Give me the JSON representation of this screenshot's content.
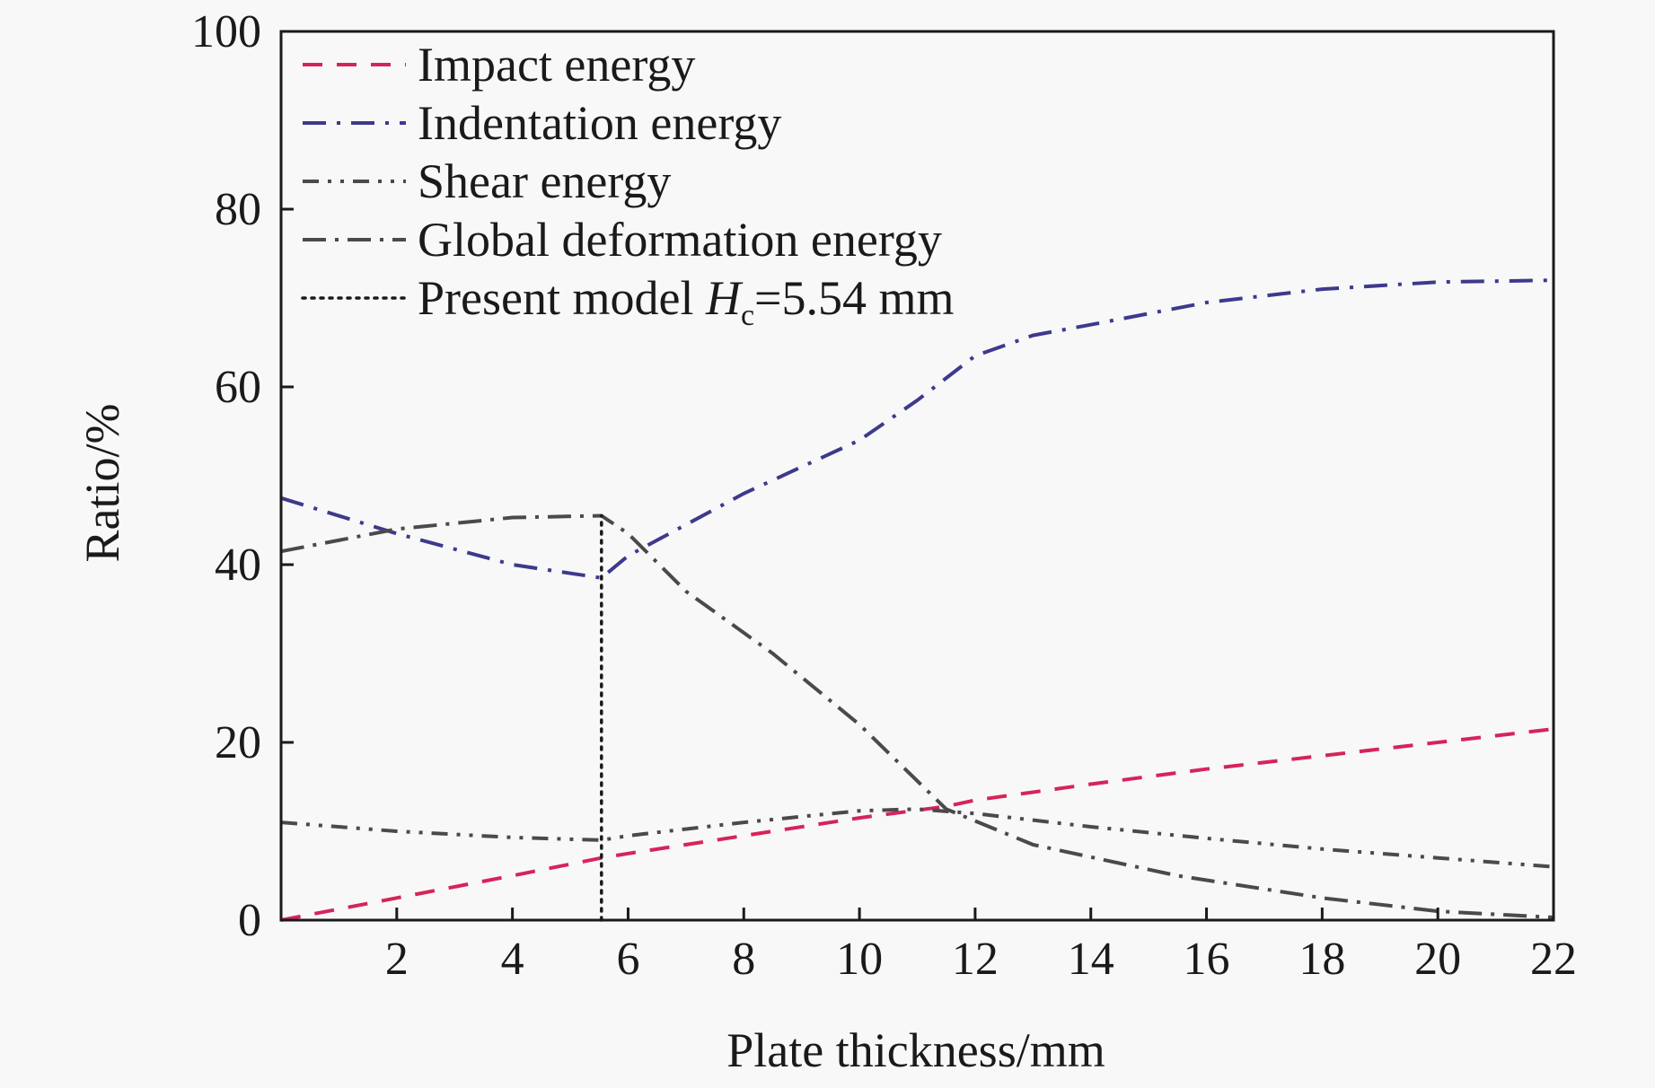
{
  "chart_data": {
    "type": "line",
    "title": "",
    "xlabel": "Plate thickness/mm",
    "ylabel": "Ratio/%",
    "xlim": [
      0,
      22
    ],
    "ylim": [
      0,
      100
    ],
    "xticks": [
      2,
      4,
      6,
      8,
      10,
      12,
      14,
      16,
      18,
      20,
      22
    ],
    "yticks": [
      0,
      20,
      40,
      60,
      80,
      100
    ],
    "grid": false,
    "legend_position": "top-left",
    "series": [
      {
        "name": "Impact energy",
        "color": "#d6245a",
        "style": "dashed",
        "x": [
          0,
          2,
          4,
          5.54,
          6,
          8,
          10,
          11.5,
          12,
          14,
          16,
          18,
          20,
          22
        ],
        "y": [
          0,
          2.5,
          5,
          7,
          7.5,
          9.5,
          11.5,
          12.8,
          13.5,
          15.3,
          17,
          18.5,
          20,
          21.5
        ]
      },
      {
        "name": "Indentation energy",
        "color": "#3d3a8c",
        "style": "dash-dot",
        "x": [
          0,
          2,
          4,
          5.54,
          6,
          8,
          10,
          11,
          12,
          13,
          14,
          16,
          18,
          20,
          22
        ],
        "y": [
          47.5,
          43.5,
          40,
          38.5,
          41,
          48,
          54,
          58.5,
          63.5,
          65.8,
          67,
          69.5,
          71,
          71.8,
          72
        ]
      },
      {
        "name": "Shear energy",
        "color": "#4a4a4a",
        "style": "dash-dot-dot",
        "x": [
          0,
          2,
          4,
          5.54,
          6,
          8,
          10,
          11,
          12,
          14,
          16,
          18,
          20,
          22
        ],
        "y": [
          11,
          10,
          9.3,
          9,
          9.5,
          11,
          12.3,
          12.5,
          12,
          10.5,
          9.2,
          8,
          7,
          6
        ]
      },
      {
        "name": "Global deformation energy",
        "color": "#4a4a4a",
        "style": "long-dash-dot",
        "x": [
          0,
          2,
          4,
          5.54,
          6,
          7,
          8.5,
          10,
          11.5,
          13,
          15.5,
          18,
          20,
          22
        ],
        "y": [
          41.5,
          44,
          45.3,
          45.5,
          43.5,
          37,
          30,
          22,
          12.5,
          8.5,
          5,
          2.5,
          1,
          0.3
        ]
      },
      {
        "name": "Present model",
        "label_prefix": "Present model ",
        "label_symbol": "H",
        "label_subscript": "c",
        "label_suffix": "=5.54 mm",
        "color": "#1a1a1a",
        "style": "dotted",
        "x": [
          5.54,
          5.54
        ],
        "y": [
          0,
          45.5
        ]
      }
    ]
  }
}
